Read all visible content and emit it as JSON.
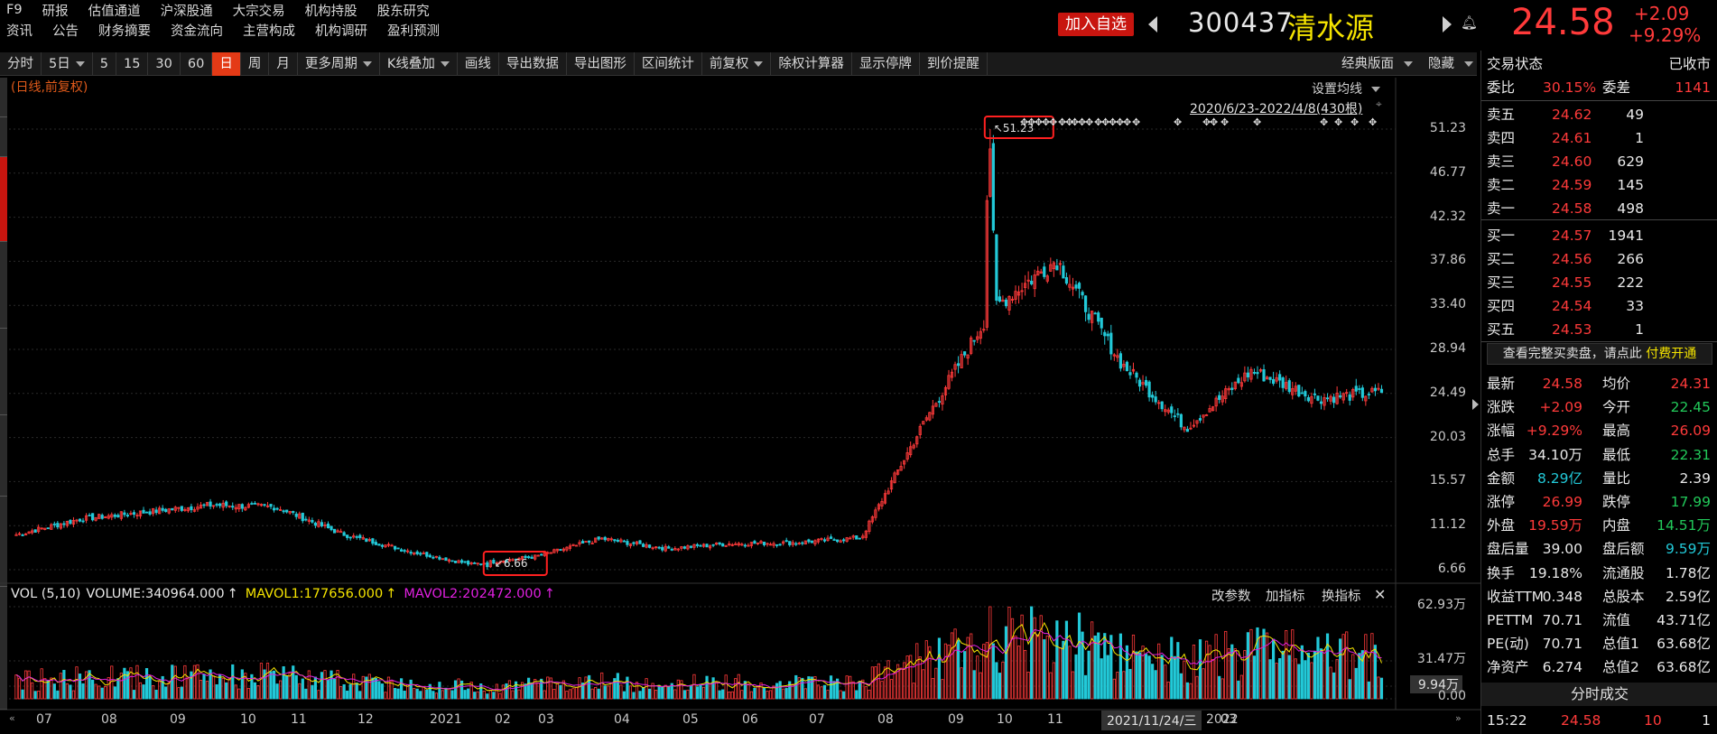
{
  "menu": {
    "row1": [
      "F9",
      "研报",
      "估值通道",
      "沪深股通",
      "大宗交易",
      "机构持股",
      "股东研究"
    ],
    "row2": [
      "资讯",
      "公告",
      "财务摘要",
      "资金流向",
      "主营构成",
      "机构调研",
      "盈利预测"
    ]
  },
  "header": {
    "add_watch": "加入自选",
    "code": "300437",
    "name": "清水源",
    "price": "24.58",
    "change": "+2.09",
    "change_pct": "+9.29%"
  },
  "toolbar": {
    "items": [
      "分时",
      "5日",
      "5",
      "15",
      "30",
      "60",
      "日",
      "周",
      "月",
      "更多周期",
      "K线叠加",
      "画线",
      "导出数据",
      "导出图形",
      "区间统计",
      "前复权",
      "除权计算器",
      "显示停牌",
      "到价提醒"
    ],
    "active_index": 6,
    "dropdown_indices": [
      1,
      9,
      10,
      15
    ],
    "layout": "经典版面",
    "hide": "隐藏"
  },
  "chart": {
    "subtitle": "(日线,前复权)",
    "set_ma": "设置均线",
    "range": "2020/6/23-2022/4/8(430根)",
    "high_label": "51.23",
    "low_label": "6.66",
    "price_ticks": [
      "51.23",
      "46.77",
      "42.32",
      "37.86",
      "33.40",
      "28.94",
      "24.49",
      "20.03",
      "15.57",
      "11.12",
      "6.66"
    ],
    "volume_ticks": [
      "62.93万",
      "31.47万",
      "9.94万",
      "0.00"
    ],
    "volume_indicator": {
      "name": "VOL (5,10)",
      "volume": "VOLUME:340964.000",
      "ma1": "MAVOL1:177656.000",
      "ma2": "MAVOL2:202472.000"
    },
    "vol_buttons": [
      "改参数",
      "加指标",
      "换指标"
    ],
    "x_labels": [
      "07",
      "08",
      "09",
      "10",
      "11",
      "12",
      "2021",
      "02",
      "03",
      "04",
      "05",
      "06",
      "07",
      "08",
      "09",
      "10",
      "11",
      "2022",
      "02",
      "03"
    ],
    "date_flag": "2021/11/24/三",
    "chart_data": {
      "type": "candlestick",
      "period": "2020/6/23-2022/4/8",
      "high": 51.23,
      "low": 6.66,
      "last": 24.58,
      "ylim": [
        6.66,
        51.23
      ],
      "monthly_closes": [
        {
          "m": "2020-07",
          "close": 10.2
        },
        {
          "m": "2020-08",
          "close": 11.8
        },
        {
          "m": "2020-09",
          "close": 12.5
        },
        {
          "m": "2020-10",
          "close": 13.2
        },
        {
          "m": "2020-11",
          "close": 13.0
        },
        {
          "m": "2020-12",
          "close": 10.3
        },
        {
          "m": "2021-01",
          "close": 8.6
        },
        {
          "m": "2021-02",
          "close": 7.2
        },
        {
          "m": "2021-03",
          "close": 8.0
        },
        {
          "m": "2021-04",
          "close": 9.8
        },
        {
          "m": "2021-05",
          "close": 8.8
        },
        {
          "m": "2021-06",
          "close": 9.3
        },
        {
          "m": "2021-07",
          "close": 9.4
        },
        {
          "m": "2021-08",
          "close": 9.9
        },
        {
          "m": "2021-09",
          "close": 22.0
        },
        {
          "m": "2021-10",
          "close": 33.0
        },
        {
          "m": "2021-11",
          "close": 38.0
        },
        {
          "m": "2021-12",
          "close": 27.5
        },
        {
          "m": "2022-01",
          "close": 21.0
        },
        {
          "m": "2022-02",
          "close": 26.8
        },
        {
          "m": "2022-03",
          "close": 24.0
        },
        {
          "m": "2022-04",
          "close": 24.58
        }
      ]
    }
  },
  "panel": {
    "status_label": "交易状态",
    "status_value": "已收市",
    "weibi_label": "委比",
    "weibi": "30.15%",
    "weicha_label": "委差",
    "weicha": "1141",
    "asks": [
      {
        "label": "卖五",
        "price": "24.62",
        "vol": "49"
      },
      {
        "label": "卖四",
        "price": "24.61",
        "vol": "1"
      },
      {
        "label": "卖三",
        "price": "24.60",
        "vol": "629"
      },
      {
        "label": "卖二",
        "price": "24.59",
        "vol": "145"
      },
      {
        "label": "卖一",
        "price": "24.58",
        "vol": "498"
      }
    ],
    "bids": [
      {
        "label": "买一",
        "price": "24.57",
        "vol": "1941"
      },
      {
        "label": "买二",
        "price": "24.56",
        "vol": "266"
      },
      {
        "label": "买三",
        "price": "24.55",
        "vol": "222"
      },
      {
        "label": "买四",
        "price": "24.54",
        "vol": "33"
      },
      {
        "label": "买五",
        "price": "24.53",
        "vol": "1"
      }
    ],
    "vip_text": "查看完整买卖盘，请点此",
    "vip_link": "付费开通",
    "stats": [
      [
        "最新",
        "24.58",
        "rd",
        "均价",
        "24.31",
        "rd"
      ],
      [
        "涨跌",
        "+2.09",
        "rd",
        "今开",
        "22.45",
        "gr"
      ],
      [
        "涨幅",
        "+9.29%",
        "rd",
        "最高",
        "26.09",
        "rd"
      ],
      [
        "总手",
        "34.10万",
        "wh",
        "最低",
        "22.31",
        "gr"
      ],
      [
        "金额",
        "8.29亿",
        "cy",
        "量比",
        "2.39",
        "wh"
      ],
      [
        "涨停",
        "26.99",
        "rd",
        "跌停",
        "17.99",
        "gr"
      ],
      [
        "外盘",
        "19.59万",
        "rd",
        "内盘",
        "14.51万",
        "gr"
      ],
      [
        "盘后量",
        "39.00",
        "wh",
        "盘后额",
        "9.59万",
        "cy"
      ],
      [
        "换手",
        "19.18%",
        "wh",
        "流通股",
        "1.78亿",
        "wh"
      ],
      [
        "收益TTM",
        "0.348",
        "wh",
        "总股本",
        "2.59亿",
        "wh"
      ],
      [
        "PETTM",
        "70.71",
        "wh",
        "流值",
        "43.71亿",
        "wh"
      ],
      [
        "PE(动)",
        "70.71",
        "wh",
        "总值1",
        "63.68亿",
        "wh"
      ],
      [
        "净资产",
        "6.274",
        "wh",
        "总值2",
        "63.68亿",
        "wh"
      ]
    ],
    "trades_title": "分时成交",
    "last_trade": {
      "time": "15:22",
      "price": "24.58",
      "vol": "10",
      "count": "1"
    }
  },
  "colors": {
    "up": "#ff3a3a",
    "down": "#22c9d8",
    "ma1": "#f5e400",
    "ma2": "#e020e0",
    "active": "#e43a16"
  }
}
